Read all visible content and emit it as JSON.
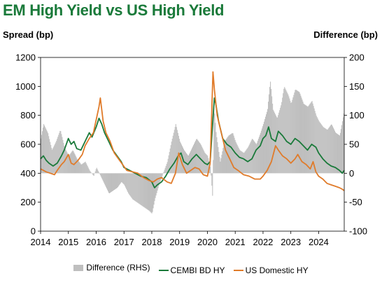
{
  "title": "EM High Yield vs US High Yield",
  "ylabel_left": "Spread (bp)",
  "ylabel_right": "Difference (bp)",
  "chart_data": {
    "type": "line",
    "title": "EM High Yield vs US High Yield",
    "ylabel": "Spread (bp)",
    "y2label": "Difference (bp)",
    "ylim": [
      0,
      1200
    ],
    "y2lim": [
      -100,
      200
    ],
    "yticks": [
      0,
      200,
      400,
      600,
      800,
      1000,
      1200
    ],
    "y2ticks": [
      -100,
      -50,
      0,
      50,
      100,
      150,
      200
    ],
    "xlim": [
      2014,
      2024.92
    ],
    "xticks": [
      "2014",
      "2015",
      "2016",
      "2017",
      "2018",
      "2019",
      "2020",
      "2021",
      "2022",
      "2023",
      "2024"
    ],
    "grid": false,
    "legend_position": "bottom",
    "series": [
      {
        "name": "Difference (RHS)",
        "type": "bar",
        "axis": "right",
        "color": "#bfbfbf",
        "points": [
          [
            2014.0,
            60
          ],
          [
            2014.1,
            85
          ],
          [
            2014.25,
            70
          ],
          [
            2014.4,
            40
          ],
          [
            2014.55,
            55
          ],
          [
            2014.7,
            75
          ],
          [
            2014.85,
            45
          ],
          [
            2015.0,
            30
          ],
          [
            2015.15,
            40
          ],
          [
            2015.3,
            25
          ],
          [
            2015.45,
            15
          ],
          [
            2015.6,
            20
          ],
          [
            2015.75,
            5
          ],
          [
            2015.9,
            -5
          ],
          [
            2016.0,
            10
          ],
          [
            2016.15,
            -5
          ],
          [
            2016.3,
            -20
          ],
          [
            2016.45,
            -35
          ],
          [
            2016.6,
            -30
          ],
          [
            2016.75,
            -25
          ],
          [
            2016.9,
            -15
          ],
          [
            2017.0,
            -20
          ],
          [
            2017.15,
            -35
          ],
          [
            2017.3,
            -45
          ],
          [
            2017.45,
            -50
          ],
          [
            2017.6,
            -55
          ],
          [
            2017.75,
            -60
          ],
          [
            2017.9,
            -65
          ],
          [
            2018.0,
            -70
          ],
          [
            2018.1,
            -45
          ],
          [
            2018.25,
            -20
          ],
          [
            2018.4,
            0
          ],
          [
            2018.55,
            20
          ],
          [
            2018.7,
            55
          ],
          [
            2018.85,
            85
          ],
          [
            2019.0,
            55
          ],
          [
            2019.15,
            40
          ],
          [
            2019.3,
            30
          ],
          [
            2019.45,
            45
          ],
          [
            2019.6,
            60
          ],
          [
            2019.75,
            50
          ],
          [
            2019.9,
            35
          ],
          [
            2020.0,
            30
          ],
          [
            2020.1,
            10
          ],
          [
            2020.18,
            -45
          ],
          [
            2020.22,
            120
          ],
          [
            2020.3,
            70
          ],
          [
            2020.45,
            20
          ],
          [
            2020.6,
            55
          ],
          [
            2020.75,
            65
          ],
          [
            2020.9,
            70
          ],
          [
            2021.0,
            55
          ],
          [
            2021.15,
            40
          ],
          [
            2021.3,
            35
          ],
          [
            2021.45,
            45
          ],
          [
            2021.6,
            60
          ],
          [
            2021.75,
            50
          ],
          [
            2021.9,
            70
          ],
          [
            2022.0,
            85
          ],
          [
            2022.15,
            110
          ],
          [
            2022.25,
            160
          ],
          [
            2022.35,
            110
          ],
          [
            2022.5,
            95
          ],
          [
            2022.65,
            120
          ],
          [
            2022.75,
            150
          ],
          [
            2022.9,
            135
          ],
          [
            2023.0,
            120
          ],
          [
            2023.15,
            145
          ],
          [
            2023.3,
            140
          ],
          [
            2023.45,
            120
          ],
          [
            2023.6,
            115
          ],
          [
            2023.75,
            125
          ],
          [
            2023.9,
            100
          ],
          [
            2024.0,
            90
          ],
          [
            2024.15,
            80
          ],
          [
            2024.3,
            75
          ],
          [
            2024.45,
            85
          ],
          [
            2024.6,
            70
          ],
          [
            2024.75,
            65
          ],
          [
            2024.92,
            110
          ]
        ]
      },
      {
        "name": "CEMBI BD HY",
        "type": "line",
        "axis": "left",
        "color": "#1a7a3a",
        "points": [
          [
            2014.0,
            500
          ],
          [
            2014.1,
            520
          ],
          [
            2014.2,
            490
          ],
          [
            2014.3,
            470
          ],
          [
            2014.45,
            450
          ],
          [
            2014.6,
            470
          ],
          [
            2014.75,
            520
          ],
          [
            2014.85,
            560
          ],
          [
            2015.0,
            640
          ],
          [
            2015.1,
            600
          ],
          [
            2015.2,
            620
          ],
          [
            2015.3,
            570
          ],
          [
            2015.45,
            560
          ],
          [
            2015.6,
            620
          ],
          [
            2015.75,
            680
          ],
          [
            2015.85,
            650
          ],
          [
            2016.0,
            720
          ],
          [
            2016.1,
            780
          ],
          [
            2016.2,
            740
          ],
          [
            2016.3,
            680
          ],
          [
            2016.45,
            620
          ],
          [
            2016.6,
            560
          ],
          [
            2016.75,
            520
          ],
          [
            2016.9,
            480
          ],
          [
            2017.0,
            440
          ],
          [
            2017.2,
            420
          ],
          [
            2017.4,
            400
          ],
          [
            2017.6,
            380
          ],
          [
            2017.8,
            370
          ],
          [
            2018.0,
            340
          ],
          [
            2018.1,
            300
          ],
          [
            2018.2,
            320
          ],
          [
            2018.35,
            340
          ],
          [
            2018.5,
            380
          ],
          [
            2018.65,
            430
          ],
          [
            2018.8,
            470
          ],
          [
            2018.95,
            520
          ],
          [
            2019.05,
            540
          ],
          [
            2019.15,
            480
          ],
          [
            2019.3,
            460
          ],
          [
            2019.45,
            500
          ],
          [
            2019.6,
            530
          ],
          [
            2019.75,
            500
          ],
          [
            2019.9,
            470
          ],
          [
            2020.0,
            460
          ],
          [
            2020.1,
            480
          ],
          [
            2020.2,
            780
          ],
          [
            2020.25,
            920
          ],
          [
            2020.3,
            880
          ],
          [
            2020.4,
            760
          ],
          [
            2020.55,
            640
          ],
          [
            2020.7,
            600
          ],
          [
            2020.85,
            580
          ],
          [
            2021.0,
            540
          ],
          [
            2021.15,
            510
          ],
          [
            2021.3,
            500
          ],
          [
            2021.45,
            480
          ],
          [
            2021.6,
            500
          ],
          [
            2021.75,
            560
          ],
          [
            2021.9,
            590
          ],
          [
            2022.0,
            640
          ],
          [
            2022.1,
            660
          ],
          [
            2022.2,
            720
          ],
          [
            2022.3,
            640
          ],
          [
            2022.45,
            620
          ],
          [
            2022.55,
            690
          ],
          [
            2022.7,
            660
          ],
          [
            2022.85,
            620
          ],
          [
            2023.0,
            600
          ],
          [
            2023.15,
            640
          ],
          [
            2023.3,
            620
          ],
          [
            2023.45,
            590
          ],
          [
            2023.6,
            560
          ],
          [
            2023.75,
            600
          ],
          [
            2023.9,
            580
          ],
          [
            2024.0,
            540
          ],
          [
            2024.15,
            500
          ],
          [
            2024.3,
            470
          ],
          [
            2024.45,
            450
          ],
          [
            2024.6,
            440
          ],
          [
            2024.75,
            420
          ],
          [
            2024.85,
            400
          ],
          [
            2024.92,
            420
          ]
        ]
      },
      {
        "name": "US Domestic HY",
        "type": "line",
        "axis": "left",
        "color": "#e07b2a",
        "points": [
          [
            2014.0,
            430
          ],
          [
            2014.1,
            420
          ],
          [
            2014.2,
            410
          ],
          [
            2014.35,
            400
          ],
          [
            2014.5,
            390
          ],
          [
            2014.6,
            420
          ],
          [
            2014.75,
            460
          ],
          [
            2014.85,
            480
          ],
          [
            2015.0,
            530
          ],
          [
            2015.1,
            470
          ],
          [
            2015.2,
            460
          ],
          [
            2015.35,
            490
          ],
          [
            2015.5,
            530
          ],
          [
            2015.6,
            590
          ],
          [
            2015.75,
            640
          ],
          [
            2015.9,
            680
          ],
          [
            2016.0,
            770
          ],
          [
            2016.1,
            860
          ],
          [
            2016.15,
            920
          ],
          [
            2016.25,
            760
          ],
          [
            2016.35,
            680
          ],
          [
            2016.5,
            620
          ],
          [
            2016.65,
            540
          ],
          [
            2016.8,
            500
          ],
          [
            2016.95,
            460
          ],
          [
            2017.1,
            420
          ],
          [
            2017.3,
            410
          ],
          [
            2017.5,
            400
          ],
          [
            2017.7,
            370
          ],
          [
            2017.9,
            350
          ],
          [
            2018.05,
            340
          ],
          [
            2018.2,
            360
          ],
          [
            2018.35,
            370
          ],
          [
            2018.55,
            340
          ],
          [
            2018.7,
            330
          ],
          [
            2018.85,
            400
          ],
          [
            2018.97,
            540
          ],
          [
            2019.1,
            460
          ],
          [
            2019.25,
            400
          ],
          [
            2019.4,
            420
          ],
          [
            2019.55,
            440
          ],
          [
            2019.7,
            430
          ],
          [
            2019.85,
            390
          ],
          [
            2020.0,
            380
          ],
          [
            2020.1,
            470
          ],
          [
            2020.2,
            1100
          ],
          [
            2020.25,
            980
          ],
          [
            2020.35,
            800
          ],
          [
            2020.5,
            680
          ],
          [
            2020.65,
            560
          ],
          [
            2020.8,
            500
          ],
          [
            2020.95,
            440
          ],
          [
            2021.1,
            420
          ],
          [
            2021.3,
            390
          ],
          [
            2021.5,
            380
          ],
          [
            2021.7,
            360
          ],
          [
            2021.9,
            360
          ],
          [
            2022.0,
            380
          ],
          [
            2022.15,
            420
          ],
          [
            2022.3,
            480
          ],
          [
            2022.45,
            590
          ],
          [
            2022.55,
            560
          ],
          [
            2022.7,
            520
          ],
          [
            2022.85,
            500
          ],
          [
            2023.0,
            470
          ],
          [
            2023.15,
            500
          ],
          [
            2023.25,
            530
          ],
          [
            2023.4,
            480
          ],
          [
            2023.55,
            460
          ],
          [
            2023.7,
            430
          ],
          [
            2023.8,
            480
          ],
          [
            2023.9,
            410
          ],
          [
            2024.0,
            380
          ],
          [
            2024.15,
            360
          ],
          [
            2024.3,
            330
          ],
          [
            2024.45,
            320
          ],
          [
            2024.6,
            310
          ],
          [
            2024.75,
            300
          ],
          [
            2024.85,
            290
          ],
          [
            2024.92,
            280
          ]
        ]
      }
    ]
  }
}
